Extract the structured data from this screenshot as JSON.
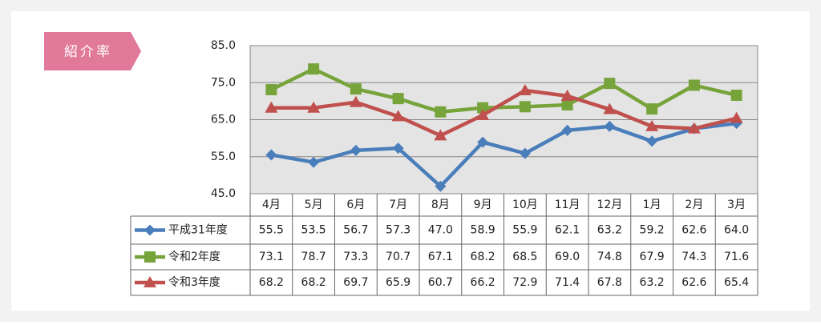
{
  "badge": "紹介率",
  "chart_data": {
    "type": "line",
    "categories": [
      "4月",
      "5月",
      "6月",
      "7月",
      "8月",
      "9月",
      "10月",
      "11月",
      "12月",
      "1月",
      "2月",
      "3月"
    ],
    "ylim": [
      45,
      85
    ],
    "yticks": [
      {
        "value": 45,
        "label": "45.0"
      },
      {
        "value": 55,
        "label": "55.0"
      },
      {
        "value": 65,
        "label": "65.0"
      },
      {
        "value": 75,
        "label": "75.0"
      },
      {
        "value": 85,
        "label": "85.0"
      }
    ],
    "grid": true,
    "series": [
      {
        "name": "平成31年度",
        "color": "#4a7ebb",
        "marker": "diamond",
        "values": [
          55.5,
          53.5,
          56.7,
          57.3,
          47.0,
          58.9,
          55.9,
          62.1,
          63.2,
          59.2,
          62.6,
          64.0
        ],
        "value_labels": [
          "55.5",
          "53.5",
          "56.7",
          "57.3",
          "47.0",
          "58.9",
          "55.9",
          "62.1",
          "63.2",
          "59.2",
          "62.6",
          "64.0"
        ]
      },
      {
        "name": "令和2年度",
        "color": "#77a33b",
        "marker": "square",
        "values": [
          73.1,
          78.7,
          73.3,
          70.7,
          67.1,
          68.2,
          68.5,
          69.0,
          74.8,
          67.9,
          74.3,
          71.6
        ],
        "value_labels": [
          "73.1",
          "78.7",
          "73.3",
          "70.7",
          "67.1",
          "68.2",
          "68.5",
          "69.0",
          "74.8",
          "67.9",
          "74.3",
          "71.6"
        ]
      },
      {
        "name": "令和3年度",
        "color": "#c0504d",
        "marker": "triangle",
        "values": [
          68.2,
          68.2,
          69.7,
          65.9,
          60.7,
          66.2,
          72.9,
          71.4,
          67.8,
          63.2,
          62.6,
          65.4
        ],
        "value_labels": [
          "68.2",
          "68.2",
          "69.7",
          "65.9",
          "60.7",
          "66.2",
          "72.9",
          "71.4",
          "67.8",
          "63.2",
          "62.6",
          "65.4"
        ]
      }
    ]
  }
}
